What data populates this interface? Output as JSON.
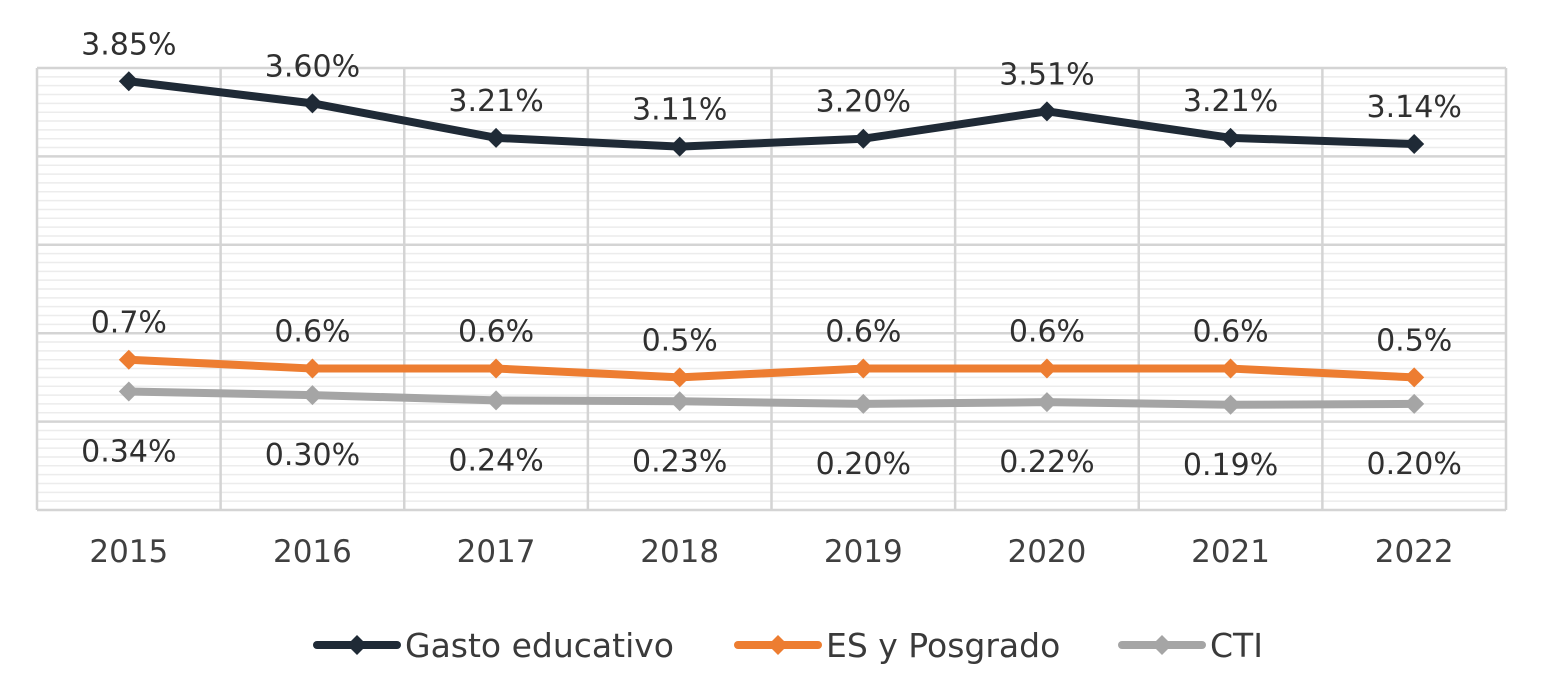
{
  "chart_data": {
    "type": "line",
    "categories": [
      "2015",
      "2016",
      "2017",
      "2018",
      "2019",
      "2020",
      "2021",
      "2022"
    ],
    "series": [
      {
        "name": "Gasto educativo",
        "color": "#1f2a36",
        "values": [
          3.85,
          3.6,
          3.21,
          3.11,
          3.2,
          3.51,
          3.21,
          3.14
        ],
        "labels": [
          "3.85%",
          "3.60%",
          "3.21%",
          "3.11%",
          "3.20%",
          "3.51%",
          "3.21%",
          "3.14%"
        ],
        "label_position": "above"
      },
      {
        "name": "ES y Posgrado",
        "color": "#ed7d31",
        "values": [
          0.7,
          0.6,
          0.6,
          0.5,
          0.6,
          0.6,
          0.6,
          0.5
        ],
        "labels": [
          "0.7%",
          "0.6%",
          "0.6%",
          "0.5%",
          "0.6%",
          "0.6%",
          "0.6%",
          "0.5%"
        ],
        "label_position": "above"
      },
      {
        "name": "CTI",
        "color": "#a5a5a5",
        "values": [
          0.34,
          0.3,
          0.24,
          0.23,
          0.2,
          0.22,
          0.19,
          0.2
        ],
        "labels": [
          "0.34%",
          "0.30%",
          "0.24%",
          "0.23%",
          "0.20%",
          "0.22%",
          "0.19%",
          "0.20%"
        ],
        "label_position": "below"
      }
    ],
    "ylim": [
      -1.0,
      4.0
    ],
    "grid": true,
    "legend_position": "bottom",
    "xlabel": "",
    "ylabel": ""
  }
}
